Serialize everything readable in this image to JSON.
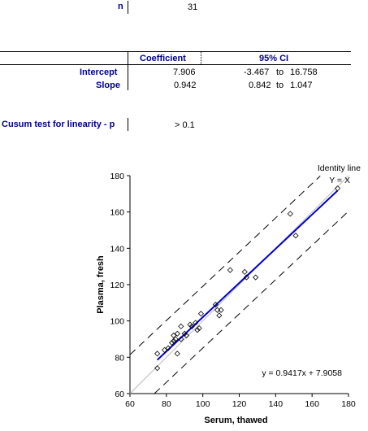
{
  "summary": {
    "n_label": "n",
    "n_value": "31"
  },
  "table": {
    "col_coefficient": "Coefficient",
    "col_ci": "95% CI",
    "rows": [
      {
        "label": "Intercept",
        "coef": "7.906",
        "ci_low": "-3.467",
        "ci_to": "to",
        "ci_high": "16.758"
      },
      {
        "label": "Slope",
        "coef": "0.942",
        "ci_low": "0.842",
        "ci_to": "to",
        "ci_high": "1.047"
      }
    ]
  },
  "cusum": {
    "label": "Cusum test for linearity - p",
    "value": "> 0.1"
  },
  "chart_data": {
    "type": "scatter",
    "xlabel": "Serum, thawed",
    "ylabel": "Plasma, fresh",
    "xlim": [
      60,
      180
    ],
    "ylim": [
      60,
      180
    ],
    "xticks": [
      "60",
      "80",
      "100",
      "120",
      "140",
      "160",
      "180"
    ],
    "yticks": [
      "60",
      "80",
      "100",
      "120",
      "140",
      "160",
      "180"
    ],
    "identity_label_line1": "Identity line",
    "identity_label_line2": "Y = X",
    "equation": "y = 0.9417x + 7.9058",
    "regression": {
      "slope": 0.9417,
      "intercept": 7.9058,
      "x_range": [
        75,
        174
      ],
      "color": "#0000CC"
    },
    "identity": {
      "color": "#bbbbbb"
    },
    "ci_band_offset": 17,
    "points": [
      [
        75,
        82
      ],
      [
        75,
        74
      ],
      [
        79,
        84
      ],
      [
        81,
        85
      ],
      [
        83,
        88
      ],
      [
        84,
        92
      ],
      [
        84,
        89
      ],
      [
        85,
        90
      ],
      [
        86,
        82
      ],
      [
        86,
        93
      ],
      [
        88,
        97
      ],
      [
        88,
        90
      ],
      [
        90,
        93
      ],
      [
        91,
        92
      ],
      [
        93,
        98
      ],
      [
        94,
        97
      ],
      [
        96,
        99
      ],
      [
        97,
        95
      ],
      [
        98,
        96
      ],
      [
        99,
        104
      ],
      [
        107,
        109
      ],
      [
        108,
        106
      ],
      [
        109,
        103
      ],
      [
        110,
        106
      ],
      [
        115,
        128
      ],
      [
        123,
        127
      ],
      [
        124,
        124
      ],
      [
        129,
        124
      ],
      [
        148,
        159
      ],
      [
        151,
        147
      ],
      [
        174,
        173
      ]
    ]
  }
}
